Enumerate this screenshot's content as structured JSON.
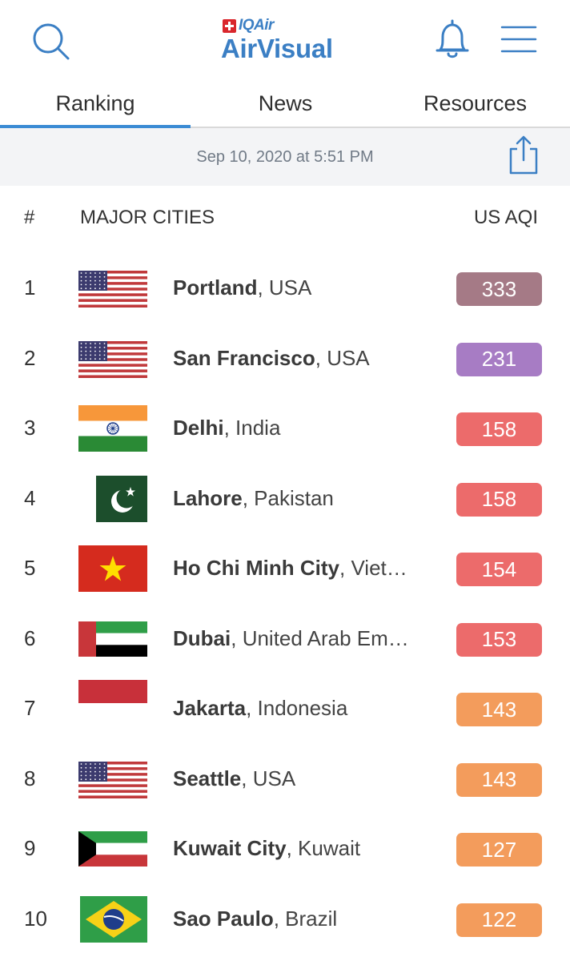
{
  "header": {
    "logo_brand": "IQAir",
    "logo_product": "AirVisual"
  },
  "tabs": [
    {
      "label": "Ranking",
      "active": true
    },
    {
      "label": "News",
      "active": false
    },
    {
      "label": "Resources",
      "active": false
    }
  ],
  "date": "Sep 10, 2020 at 5:51 PM",
  "columns": {
    "rank": "#",
    "city": "MAJOR CITIES",
    "aqi": "US AQI"
  },
  "rankings": [
    {
      "rank": "1",
      "city": "Portland",
      "country": "USA",
      "aqi": "333",
      "color": "#a57a86",
      "flag": "usa"
    },
    {
      "rank": "2",
      "city": "San Francisco",
      "country": "USA",
      "aqi": "231",
      "color": "#a77cc4",
      "flag": "usa"
    },
    {
      "rank": "3",
      "city": "Delhi",
      "country": "India",
      "aqi": "158",
      "color": "#ec6b6b",
      "flag": "india"
    },
    {
      "rank": "4",
      "city": "Lahore",
      "country": "Pakistan",
      "aqi": "158",
      "color": "#ec6b6b",
      "flag": "pakistan"
    },
    {
      "rank": "5",
      "city": "Ho Chi Minh City",
      "country": "Viet…",
      "aqi": "154",
      "color": "#ec6b6b",
      "flag": "vietnam"
    },
    {
      "rank": "6",
      "city": "Dubai",
      "country": "United Arab Em…",
      "aqi": "153",
      "color": "#ec6b6b",
      "flag": "uae"
    },
    {
      "rank": "7",
      "city": "Jakarta",
      "country": "Indonesia",
      "aqi": "143",
      "color": "#f39c5c",
      "flag": "indonesia"
    },
    {
      "rank": "8",
      "city": "Seattle",
      "country": "USA",
      "aqi": "143",
      "color": "#f39c5c",
      "flag": "usa"
    },
    {
      "rank": "9",
      "city": "Kuwait City",
      "country": "Kuwait",
      "aqi": "127",
      "color": "#f39c5c",
      "flag": "kuwait"
    },
    {
      "rank": "10",
      "city": "Sao Paulo",
      "country": "Brazil",
      "aqi": "122",
      "color": "#f39c5c",
      "flag": "brazil"
    }
  ],
  "icons": {
    "search": "search-icon",
    "bell": "bell-icon",
    "menu": "hamburger-menu-icon",
    "share": "share-icon"
  },
  "colors": {
    "brand": "#3b7fc4",
    "tab_active_underline": "#3b8bd4",
    "aqi_hazardous": "#a57a86",
    "aqi_very_unhealthy": "#a77cc4",
    "aqi_unhealthy": "#ec6b6b",
    "aqi_unhealthy_sensitive": "#f39c5c"
  }
}
